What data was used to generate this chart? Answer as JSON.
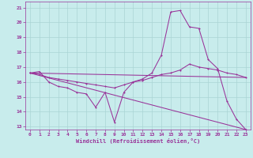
{
  "xlabel": "Windchill (Refroidissement éolien,°C)",
  "bg_color": "#c8ecec",
  "grid_color": "#aad4d4",
  "line_color": "#993399",
  "xlim": [
    -0.5,
    23.5
  ],
  "ylim": [
    12.8,
    21.4
  ],
  "xticks": [
    0,
    1,
    2,
    3,
    4,
    5,
    6,
    7,
    8,
    9,
    10,
    11,
    12,
    13,
    14,
    15,
    16,
    17,
    18,
    19,
    20,
    21,
    22,
    23
  ],
  "yticks": [
    13,
    14,
    15,
    16,
    17,
    18,
    19,
    20,
    21
  ],
  "series1_x": [
    0,
    1,
    2,
    3,
    4,
    5,
    6,
    7,
    8,
    9,
    10,
    11,
    12,
    13,
    14,
    15,
    16,
    17,
    18,
    19,
    20,
    21,
    22,
    23
  ],
  "series1_y": [
    16.6,
    16.7,
    16.0,
    15.7,
    15.6,
    15.3,
    15.2,
    14.3,
    15.3,
    13.3,
    15.3,
    16.0,
    16.2,
    16.6,
    17.8,
    20.7,
    20.8,
    19.7,
    19.6,
    17.5,
    16.9,
    14.7,
    13.5,
    12.8
  ],
  "series2_x": [
    0,
    1,
    2,
    3,
    4,
    5,
    6,
    7,
    8,
    9,
    10,
    11,
    12,
    13,
    14,
    15,
    16,
    17,
    18,
    19,
    20,
    21,
    22,
    23
  ],
  "series2_y": [
    16.6,
    16.5,
    16.3,
    16.2,
    16.1,
    16.0,
    15.9,
    15.8,
    15.7,
    15.6,
    15.8,
    16.0,
    16.1,
    16.3,
    16.5,
    16.6,
    16.8,
    17.2,
    17.0,
    16.9,
    16.8,
    16.6,
    16.5,
    16.3
  ],
  "series3_x": [
    0,
    23
  ],
  "series3_y": [
    16.6,
    12.8
  ],
  "series4_x": [
    0,
    23
  ],
  "series4_y": [
    16.6,
    16.3
  ]
}
